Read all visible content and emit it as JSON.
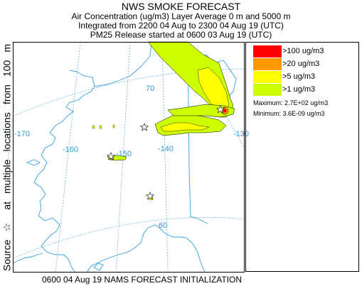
{
  "header": {
    "title": "NWS SMOKE FORECAST",
    "line1": "Air Concentration (ug/m3) Layer Average    0 m and  5000 m",
    "line2": "Integrated from 2200 04 Aug to 2300 04 Aug 19 (UTC)",
    "line3": "PM25 Release started at 0600 03 Aug 19 (UTC)"
  },
  "side_label": {
    "source": "Source",
    "star": "☆",
    "multiple": "at multiple locations",
    "from": "from",
    "height": "100 m"
  },
  "map": {
    "lon_labels": [
      "-170",
      "-160",
      "-150",
      "-140",
      "-130"
    ],
    "lat_labels": [
      "70",
      "60"
    ]
  },
  "legend": {
    "items": [
      {
        "label": ">100 ug/m3",
        "color": "#ff0000"
      },
      {
        "label": ">20 ug/m3",
        "color": "#ff9900"
      },
      {
        "label": ">5 ug/m3",
        "color": "#ffff00"
      },
      {
        "label": ">1 ug/m3",
        "color": "#ccff00"
      }
    ],
    "maximum": "Maximum: 2.7E+02 ug/m3",
    "minimum": "Minimum: 3.6E-09 ug/m3"
  },
  "colors": {
    "coast": "#30a0e0",
    "grid": "#66b3d9",
    "label": "#3399cc",
    "frame": "#000000"
  },
  "footer": "0600 04 Aug 19 NAMS FORECAST INITIALIZATION"
}
